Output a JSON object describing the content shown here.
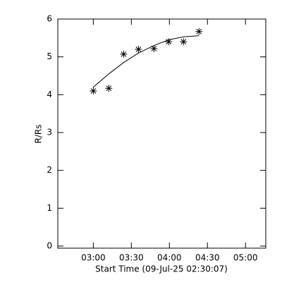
{
  "chart_data": {
    "type": "scatter",
    "ylabel": "R/Rs",
    "xlabel": "Start Time (09-Jul-25 02:30:07)",
    "xlim": [
      152,
      316
    ],
    "ylim": [
      0,
      6
    ],
    "xticks": [
      {
        "value": 180,
        "label": "03:00"
      },
      {
        "value": 210,
        "label": "03:30"
      },
      {
        "value": 240,
        "label": "04:00"
      },
      {
        "value": 270,
        "label": "04:30"
      },
      {
        "value": 300,
        "label": "05:00"
      }
    ],
    "yticks": [
      0,
      1,
      2,
      3,
      4,
      5,
      6
    ],
    "color": "#000000",
    "series": [
      {
        "style": "marker",
        "x": [
          180,
          192.2,
          203.9,
          215.6,
          227.8,
          239.4,
          251.1,
          263.3
        ],
        "values": [
          4.1,
          4.17,
          5.07,
          5.2,
          5.22,
          5.4,
          5.4,
          5.67
        ]
      },
      {
        "style": "line",
        "x": [
          180,
          192.2,
          203.9,
          215.6,
          227.8,
          239.4,
          251.1,
          263.3
        ],
        "values": [
          4.2,
          4.55,
          4.85,
          5.1,
          5.3,
          5.45,
          5.53,
          5.56
        ]
      }
    ]
  }
}
